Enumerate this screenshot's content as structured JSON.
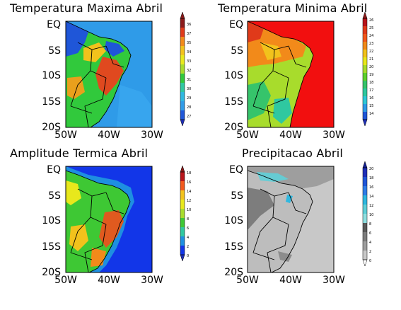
{
  "figure": {
    "panels": [
      {
        "id": "tmax",
        "title": "Temperatura Maxima Abril",
        "lat_labels": [
          "EQ",
          "5S",
          "10S",
          "15S",
          "20S"
        ],
        "lon_labels": [
          "50W",
          "40W",
          "30W"
        ],
        "colorbar_labels": [
          "36",
          "37",
          "35",
          "34",
          "33",
          "32",
          "31",
          "30",
          "29",
          "28",
          "27"
        ],
        "colors": {
          "ocean": "#2f9be8",
          "land_hot": "#e0491f",
          "land_mid": "#31c93c",
          "land_cool": "#1f56d8"
        }
      },
      {
        "id": "tmin",
        "title": "Temperatura Minima Abril",
        "lat_labels": [
          "EQ",
          "5S",
          "10S",
          "15S",
          "20S"
        ],
        "lon_labels": [
          "50W",
          "40W",
          "30W"
        ],
        "colorbar_labels": [
          "26",
          "25",
          "24",
          "23",
          "22",
          "21",
          "20",
          "19",
          "18",
          "17",
          "16",
          "15",
          "14"
        ],
        "colors": {
          "ocean": "#f20f0f",
          "land_hot": "#f2581c",
          "land_mid": "#a8dc2c",
          "land_cool": "#36c46b"
        }
      },
      {
        "id": "amp",
        "title": "Amplitude Termica Abril",
        "lat_labels": [
          "EQ",
          "5S",
          "10S",
          "15S",
          "20S"
        ],
        "lon_labels": [
          "50W",
          "40W",
          "30W"
        ],
        "colorbar_labels": [
          "18",
          "16",
          "14",
          "12",
          "10",
          "8",
          "6",
          "4",
          "2",
          "0"
        ],
        "colors": {
          "ocean": "#1236e8",
          "land_hot": "#e05a1f",
          "land_mid": "#3ec834",
          "land_cool": "#1e8fe0"
        }
      },
      {
        "id": "prec",
        "title": "Precipitacao Abril",
        "lat_labels": [
          "EQ",
          "5S",
          "10S",
          "15S",
          "20S"
        ],
        "lon_labels": [
          "50W",
          "40W",
          "30W"
        ],
        "colorbar_labels": [
          "20",
          "18",
          "16",
          "14",
          "12",
          "10",
          "8",
          "6",
          "4",
          "2",
          "0"
        ],
        "colors": {
          "ocean": "#c8c8c8",
          "land_hot": "#9e9e9e",
          "land_mid": "#bdbdbd",
          "land_cool": "#5fcfd8"
        }
      }
    ]
  }
}
